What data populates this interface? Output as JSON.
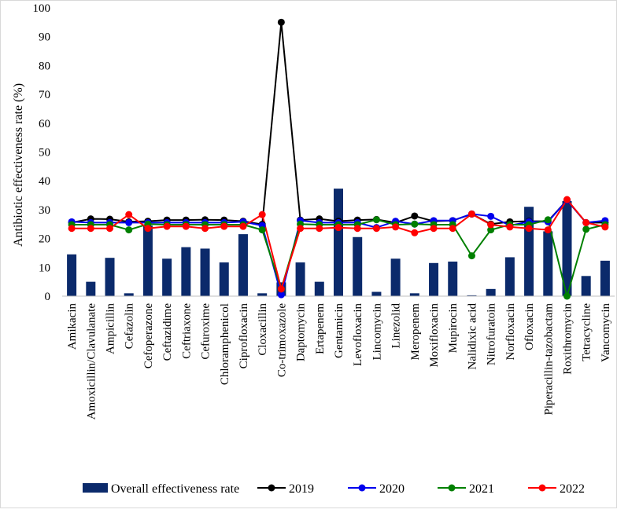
{
  "chart_data": {
    "type": "bar",
    "ylabel": "Antibiotic effectiveness rate (%)",
    "xlabel": "",
    "ylim": [
      0,
      100
    ],
    "yticks": [
      0,
      10,
      20,
      30,
      40,
      50,
      60,
      70,
      80,
      90,
      100
    ],
    "grid": false,
    "legend_position": "bottom",
    "categories": [
      "Amikacin",
      "Amoxicillin/Clavulanate",
      "Ampicillin",
      "Cefazolin",
      "Cefoperazone",
      "Ceftazidime",
      "Ceftriaxone",
      "Cefuroxime",
      "Chloramphenicol",
      "Ciprofloxacin",
      "Cloxacillin",
      "Co-trimoxazole",
      "Daptomycin",
      "Ertapenem",
      "Gentamicin",
      "Levofloxacin",
      "Lincomycin",
      "Linezolid",
      "Meropenem",
      "Moxifloxacin",
      "Mupirocin",
      "Nalidixic acid",
      "Nitrofuratoin",
      "Norfloxacin",
      "Ofloxacin",
      "Piperacillin-tazobactam",
      "Roxithromycin",
      "Tetracycline",
      "Vancomycin"
    ],
    "bars": {
      "name": "Overall effectiveness rate",
      "color": "#0b2a6b",
      "values": [
        14.5,
        5.0,
        13.3,
        1.0,
        24.5,
        13.0,
        17.0,
        16.5,
        11.7,
        21.5,
        1.0,
        4.8,
        11.7,
        5.0,
        37.3,
        20.5,
        1.5,
        13.0,
        1.0,
        11.5,
        12.0,
        0.3,
        2.5,
        13.5,
        31.0,
        22.5,
        33.0,
        7.0,
        12.3
      ]
    },
    "series": [
      {
        "name": "2019",
        "color": "#000000",
        "values": [
          25.5,
          26.8,
          26.7,
          25.8,
          26.0,
          26.4,
          26.4,
          26.5,
          26.4,
          26.0,
          24.9,
          95.0,
          26.4,
          26.8,
          26.0,
          26.4,
          26.6,
          25.5,
          27.8,
          26.0,
          26.2,
          28.5,
          25.0,
          25.8,
          26.0,
          26.0,
          33.3,
          25.5,
          25.5
        ]
      },
      {
        "name": "2020",
        "color": "#0000ee",
        "values": [
          25.8,
          25.5,
          25.5,
          25.5,
          25.5,
          25.5,
          25.5,
          25.5,
          25.5,
          25.8,
          24.5,
          0.5,
          26.2,
          25.5,
          25.5,
          25.5,
          23.8,
          26.0,
          25.0,
          26.2,
          26.2,
          28.5,
          27.7,
          24.5,
          25.8,
          25.8,
          33.3,
          25.5,
          26.2
        ]
      },
      {
        "name": "2021",
        "color": "#008000",
        "values": [
          24.8,
          24.8,
          24.8,
          23.0,
          25.0,
          24.8,
          24.8,
          24.8,
          24.8,
          24.8,
          23.0,
          2.5,
          25.0,
          24.8,
          24.8,
          24.8,
          26.5,
          24.8,
          25.0,
          24.8,
          24.8,
          14.0,
          23.0,
          24.8,
          24.8,
          26.5,
          0.0,
          23.2,
          24.8
        ]
      },
      {
        "name": "2022",
        "color": "#ff0000",
        "values": [
          23.5,
          23.5,
          23.5,
          28.3,
          23.5,
          24.2,
          24.2,
          23.5,
          24.2,
          24.2,
          28.3,
          2.5,
          23.5,
          23.5,
          23.8,
          23.5,
          23.5,
          24.0,
          22.0,
          23.5,
          23.5,
          28.5,
          24.8,
          24.0,
          23.5,
          23.0,
          33.5,
          25.5,
          24.0
        ]
      }
    ]
  }
}
